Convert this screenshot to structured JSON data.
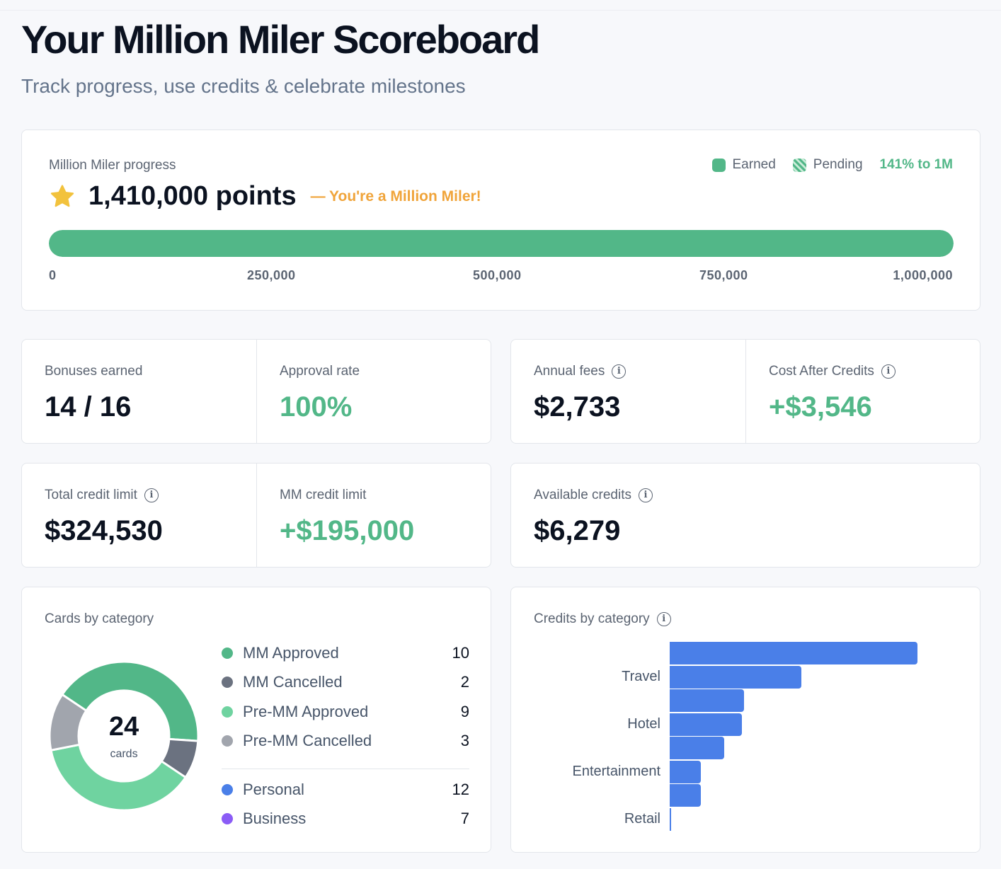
{
  "page": {
    "title": "Your Million Miler Scoreboard",
    "subtitle": "Track progress, use credits & celebrate milestones"
  },
  "progress": {
    "label": "Million Miler progress",
    "points": "1,410,000 points",
    "message": "— You're a Million Miler!",
    "legend_earned": "Earned",
    "legend_pending": "Pending",
    "percent_text": "141% to 1M",
    "fill_fraction": 1.0,
    "ticks": [
      "0",
      "250,000",
      "500,000",
      "750,000",
      "1,000,000"
    ],
    "icon": "star-icon",
    "colors": {
      "earned": "#52b788",
      "star": "#f2c23d",
      "message": "#f0a43a"
    }
  },
  "stats": {
    "bonuses": {
      "label": "Bonuses earned",
      "value": "14 / 16"
    },
    "approval": {
      "label": "Approval rate",
      "value": "100%"
    },
    "fees": {
      "label": "Annual fees",
      "value": "$2,733"
    },
    "cost": {
      "label": "Cost After Credits",
      "value": "+$3,546"
    },
    "credit_limit": {
      "label": "Total credit limit",
      "value": "$324,530"
    },
    "mm_limit": {
      "label": "MM credit limit",
      "value": "+$195,000"
    },
    "available": {
      "label": "Available credits",
      "value": "$6,279"
    }
  },
  "cards_by_category": {
    "title": "Cards by category",
    "total": "24",
    "total_label": "cards",
    "items": [
      {
        "label": "MM Approved",
        "count": "10",
        "color": "#52b788"
      },
      {
        "label": "MM Cancelled",
        "count": "2",
        "color": "#6b7280"
      },
      {
        "label": "Pre-MM Approved",
        "count": "9",
        "color": "#6fd3a0"
      },
      {
        "label": "Pre-MM Cancelled",
        "count": "3",
        "color": "#a1a5ad"
      }
    ],
    "types": [
      {
        "label": "Personal",
        "count": "12",
        "color": "#4a7fe8"
      },
      {
        "label": "Business",
        "count": "7",
        "color": "#8b5cf6"
      }
    ]
  },
  "credits_by_category": {
    "title": "Credits by category",
    "categories": [
      "Travel",
      "Hotel",
      "Entertainment",
      "Retail"
    ],
    "bar_color": "#4a7fe8"
  },
  "chart_data": [
    {
      "type": "pie",
      "title": "Cards by category",
      "categories": [
        "MM Approved",
        "MM Cancelled",
        "Pre-MM Approved",
        "Pre-MM Cancelled"
      ],
      "values": [
        10,
        2,
        9,
        3
      ],
      "colors": [
        "#52b788",
        "#6b7280",
        "#6fd3a0",
        "#a1a5ad"
      ],
      "center_text": "24 cards"
    },
    {
      "type": "bar",
      "orientation": "horizontal",
      "title": "Credits by category",
      "bar_values_relative": [
        1.0,
        0.53,
        0.3,
        0.29,
        0.22,
        0.125,
        0.125,
        0.005
      ],
      "tick_labels": [
        "Travel",
        "Hotel",
        "Entertainment",
        "Retail"
      ]
    }
  ]
}
